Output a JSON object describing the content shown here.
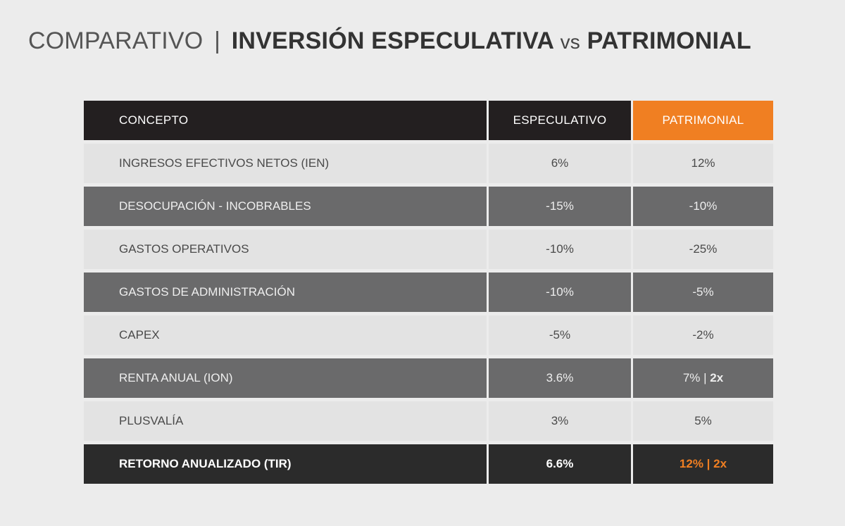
{
  "title": {
    "prefix": "COMPARATIVO",
    "separator": "|",
    "part1": "INVERSIÓN ESPECULATIVA",
    "vs": "vs",
    "part2": "PATRIMONIAL"
  },
  "colors": {
    "accent": "#f07f22",
    "header_bg": "#231f20",
    "row_light": "#e3e3e3",
    "row_dark": "#6a6a6b",
    "total_bg": "#2b2b2b"
  },
  "table": {
    "headers": {
      "concept": "CONCEPTO",
      "speculative": "ESPECULATIVO",
      "patrimonial": "PATRIMONIAL"
    },
    "rows": [
      {
        "concept": "INGRESOS EFECTIVOS NETOS (IEN)",
        "speculative": "6%",
        "patrimonial": "12%"
      },
      {
        "concept": "DESOCUPACIÓN - INCOBRABLES",
        "speculative": "-15%",
        "patrimonial": "-10%"
      },
      {
        "concept": "GASTOS OPERATIVOS",
        "speculative": "-10%",
        "patrimonial": "-25%"
      },
      {
        "concept": "GASTOS DE ADMINISTRACIÓN",
        "speculative": "-10%",
        "patrimonial": "-5%"
      },
      {
        "concept": "CAPEX",
        "speculative": "-5%",
        "patrimonial": "-2%"
      },
      {
        "concept": "RENTA ANUAL (ION)",
        "speculative": "3.6%",
        "patrimonial": "7% | ",
        "patrimonial_strong": "2x"
      },
      {
        "concept": "PLUSVALÍA",
        "speculative": "3%",
        "patrimonial": "5%"
      }
    ],
    "total": {
      "concept": "RETORNO ANUALIZADO (TIR)",
      "speculative": "6.6%",
      "patrimonial": "12% | 2x"
    }
  }
}
